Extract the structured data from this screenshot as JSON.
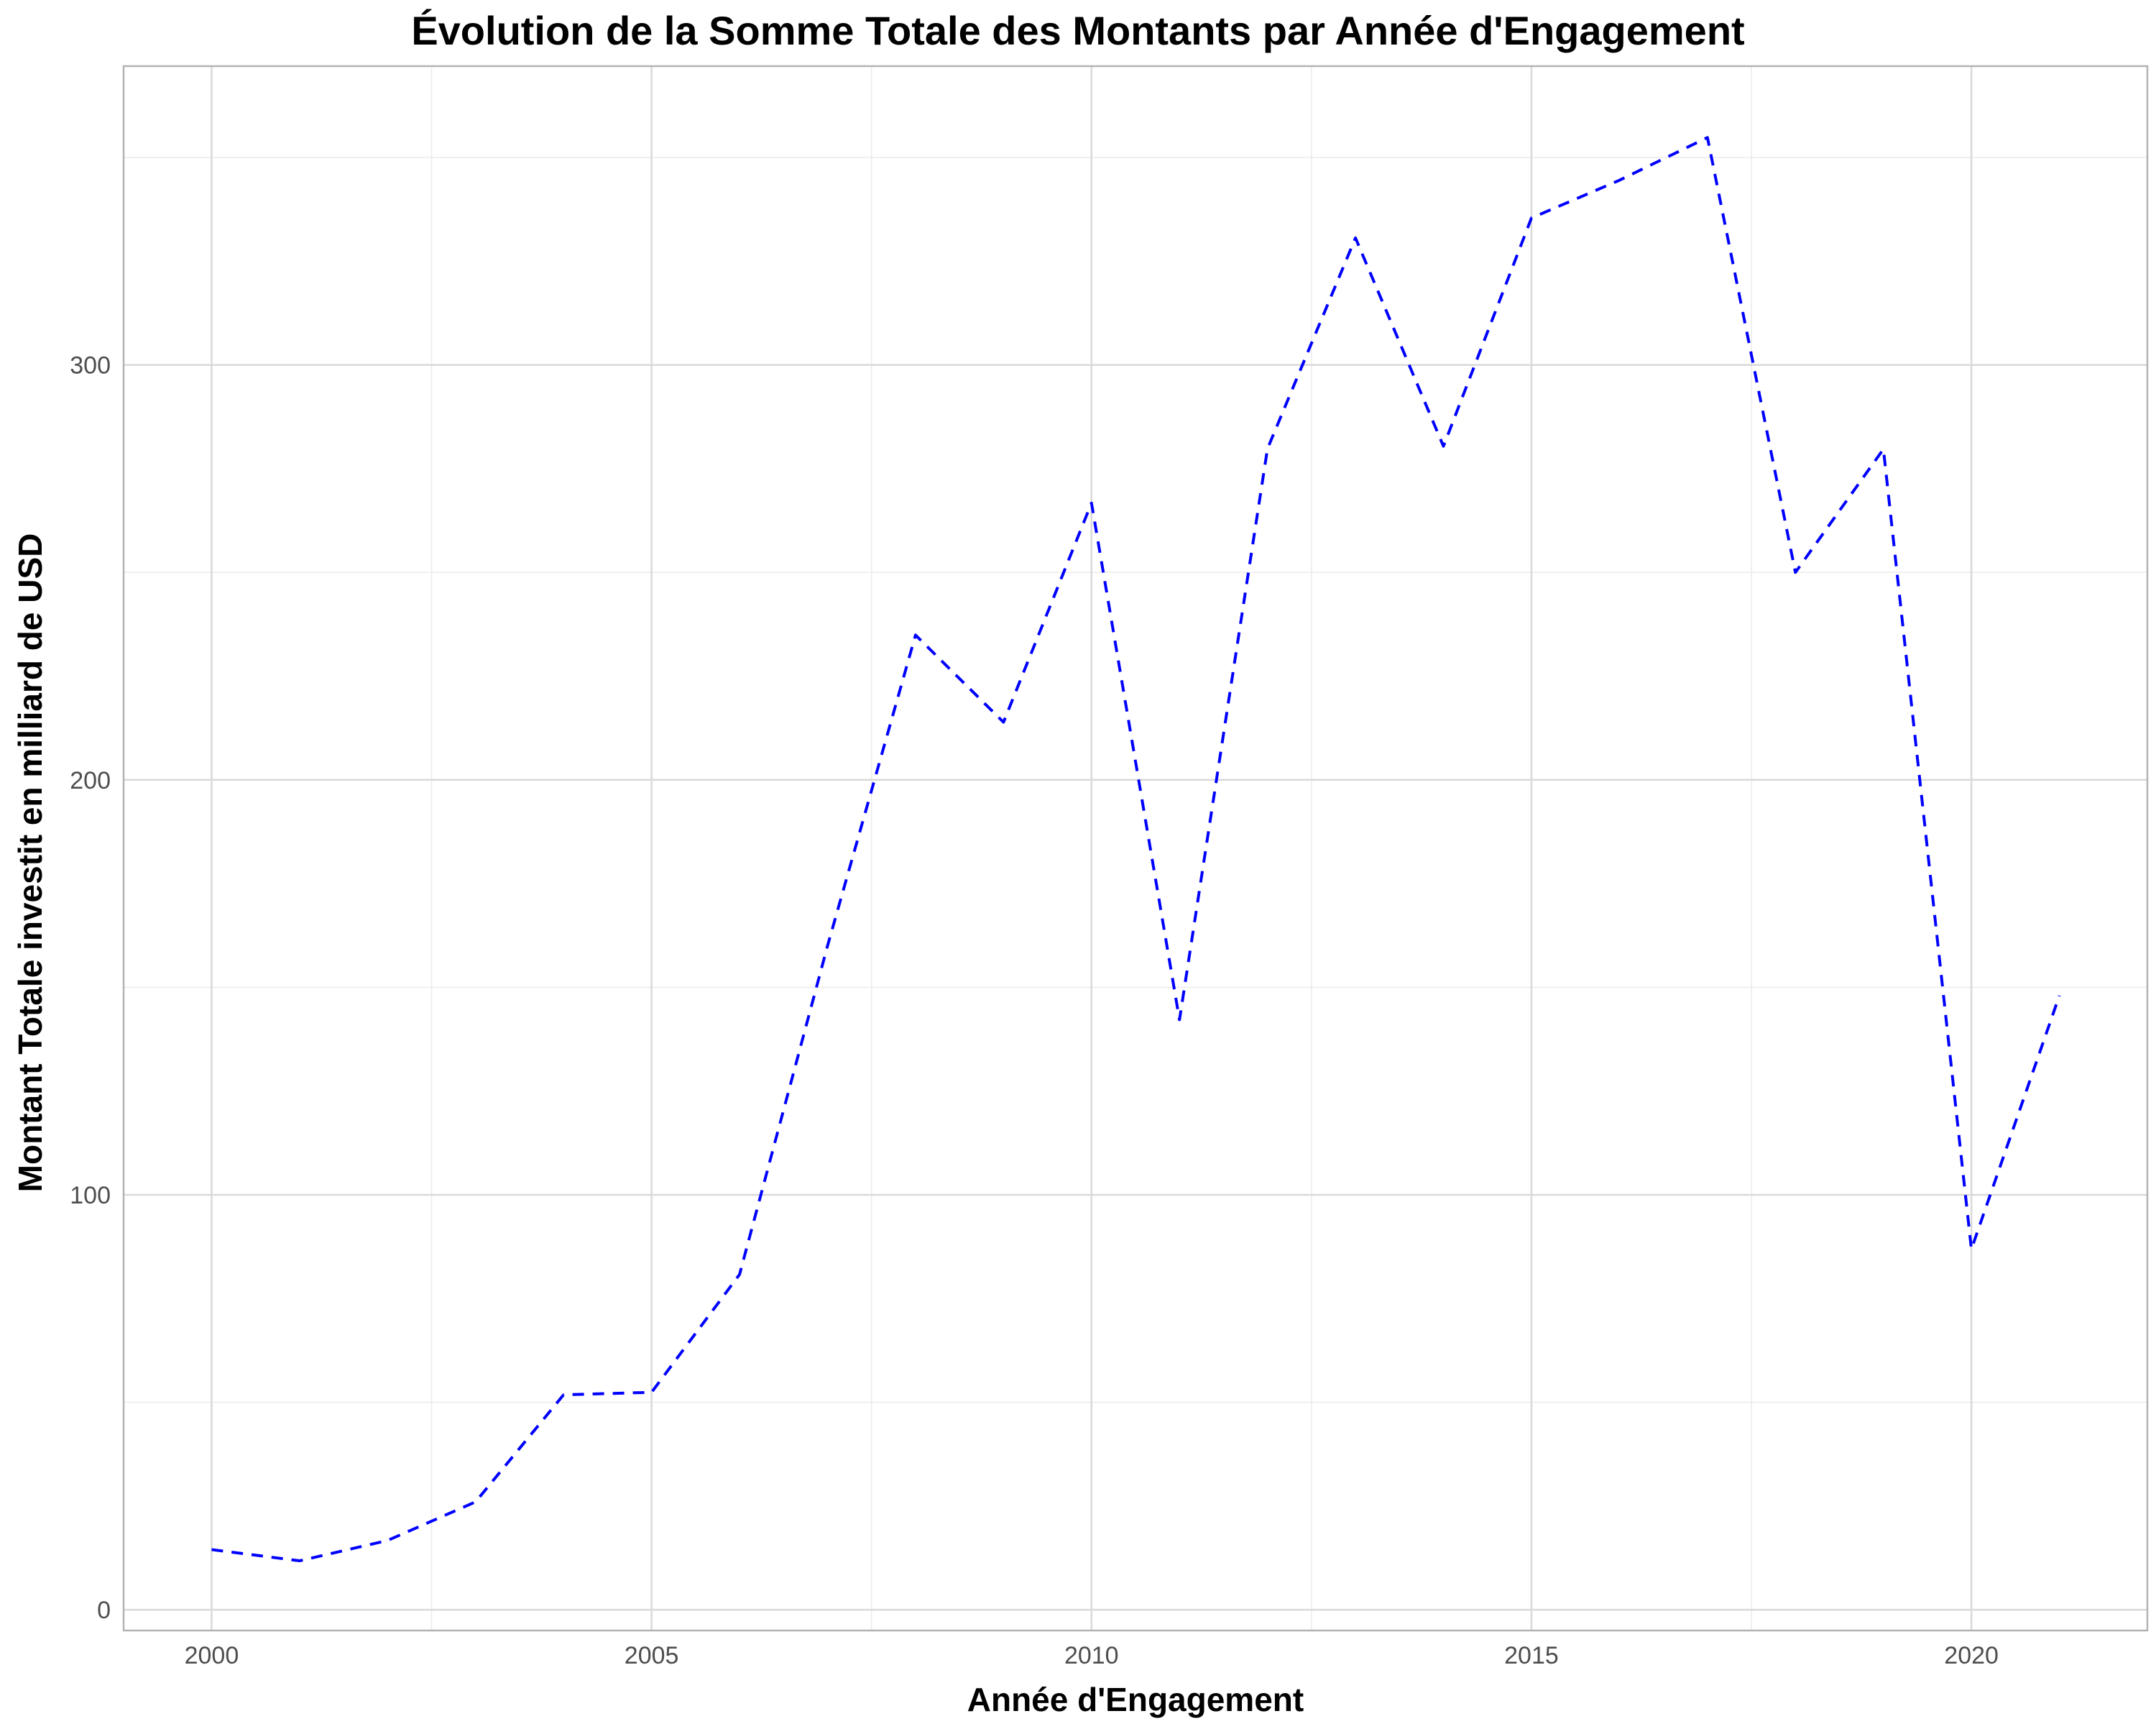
{
  "chart_data": {
    "type": "line",
    "title": "Évolution de la Somme Totale des Montants par Année d'Engagement",
    "xlabel": "Année d'Engagement",
    "ylabel": "Montant  Totale investit en milliard de USD",
    "x": [
      2000,
      2001,
      2002,
      2003,
      2004,
      2005,
      2006,
      2007,
      2008,
      2009,
      2010,
      2011,
      2012,
      2013,
      2014,
      2015,
      2016,
      2017,
      2018,
      2019,
      2020,
      2021
    ],
    "series": [
      {
        "values": [
          14.5,
          11.8,
          16.7,
          26.0,
          51.8,
          52.4,
          80.8,
          160.0,
          234.9,
          213.9,
          266.7,
          142.2,
          279.8,
          330.6,
          280.4,
          335.4,
          344.5,
          354.8,
          250.0,
          279.7,
          86.9,
          148.0
        ]
      }
    ],
    "xlim": [
      1999,
      2022
    ],
    "ylim": [
      -5,
      372
    ],
    "xticks": [
      2000,
      2005,
      2010,
      2015,
      2020
    ],
    "yticks": [
      0,
      100,
      200,
      300
    ],
    "grid": true,
    "legend": "none",
    "colors": {
      "line": "#0000ff",
      "grid_major": "#d9d9d9",
      "grid_minor": "#ebebeb",
      "panel_border": "#b3b3b3",
      "tick_label": "#4d4d4d"
    }
  }
}
